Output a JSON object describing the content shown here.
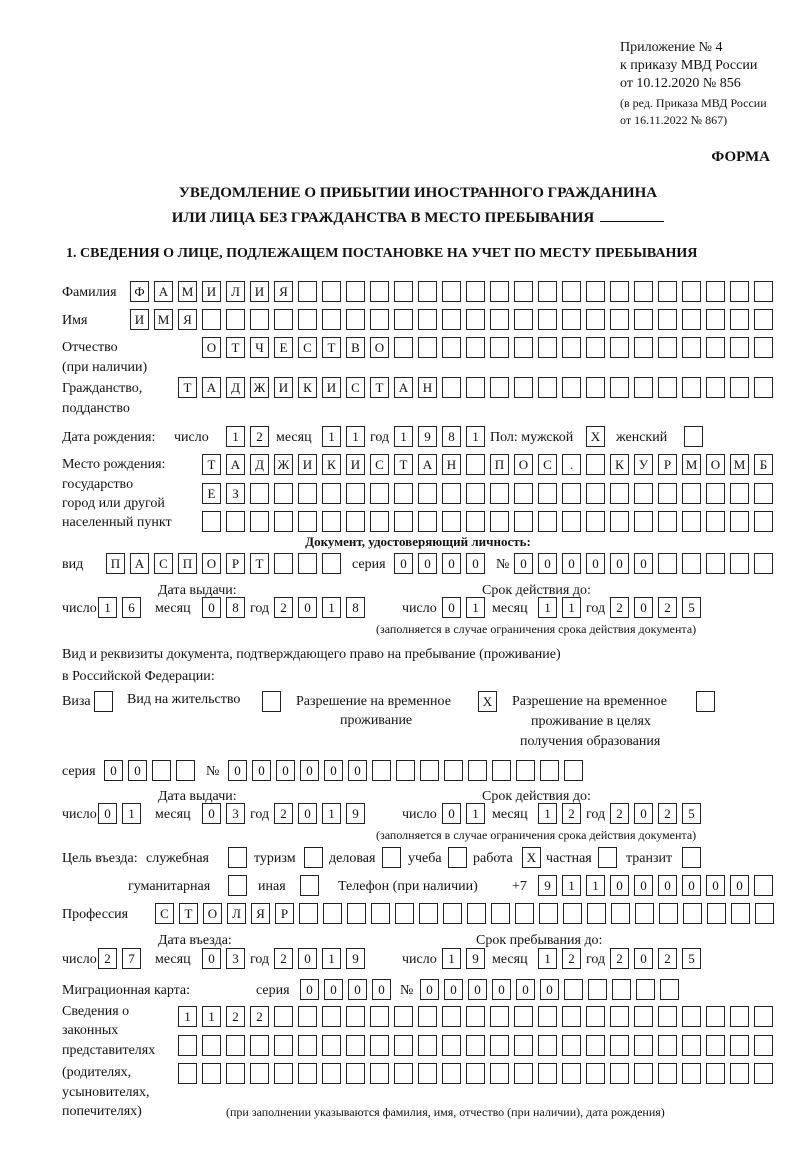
{
  "header": {
    "appendix": [
      "Приложение № 4",
      "к приказу МВД России",
      "от 10.12.2020 № 856"
    ],
    "edition": [
      "(в ред. Приказа МВД России",
      "от 16.11.2022 № 867)"
    ],
    "forma": "ФОРМА",
    "title": [
      "УВЕДОМЛЕНИЕ О ПРИБЫТИИ ИНОСТРАННОГО ГРАЖДАНИНА",
      "ИЛИ ЛИЦА БЕЗ ГРАЖДАНСТВА В МЕСТО ПРЕБЫВАНИЯ"
    ],
    "section1": "1. СВЕДЕНИЯ О ЛИЦЕ, ПОДЛЕЖАЩЕМ ПОСТАНОВКЕ НА УЧЕТ ПО МЕСТУ ПРЕБЫВАНИЯ"
  },
  "person": {
    "surname": {
      "label": "Фамилия",
      "value": "ФАМИЛИЯ"
    },
    "name": {
      "label": "Имя",
      "value": "ИМЯ"
    },
    "patronymic": {
      "label": [
        "Отчество",
        "(при наличии)"
      ],
      "value": "ОТЧЕСТВО"
    },
    "citizenship": {
      "label": [
        "Гражданство,",
        "подданство"
      ],
      "value": "ТАДЖИКИСТАН"
    },
    "birth_date": {
      "label": "Дата рождения:",
      "day_label": "число",
      "day": "12",
      "month_label": "месяц",
      "month": "11",
      "year_label": "год",
      "year": "1981"
    },
    "sex": {
      "label": "Пол: мужской",
      "male": "X",
      "female_label": "женский",
      "female": ""
    },
    "birth_place": {
      "label": [
        "Место рождения:",
        "государство",
        "город или другой",
        "населенный пункт"
      ],
      "lines": [
        "ТАДЖИКИСТАН ПОС. КУРМОМБ",
        "ЕЗ",
        ""
      ]
    }
  },
  "id_document": {
    "heading": "Документ, удостоверяющий личность:",
    "type_label": "вид",
    "type": "ПАСПОРТ",
    "series_label": "серия",
    "series": "0000",
    "number_label": "№",
    "number": "000000",
    "issue_label": "Дата выдачи:",
    "valid_label": "Срок действия до:",
    "day_label": "число",
    "month_label": "месяц",
    "year_label": "год",
    "issue": {
      "day": "16",
      "month": "08",
      "year": "2018"
    },
    "valid": {
      "day": "01",
      "month": "11",
      "year": "2025"
    },
    "note": "(заполняется в случае ограничения срока действия документа)"
  },
  "residence_document": {
    "heading": [
      "Вид и реквизиты документа, подтверждающего право на пребывание (проживание)",
      "в Российской Федерации:"
    ],
    "visa_label": "Виза",
    "visa": "",
    "residence_permit_label": "Вид на жительство",
    "residence_permit": "",
    "temp_permit_label": [
      "Разрешение на временное",
      "проживание"
    ],
    "temp_permit": "X",
    "temp_permit_edu_label": [
      "Разрешение на временное",
      "проживание в целях",
      "получения образования"
    ],
    "temp_permit_edu": "",
    "series_label": "серия",
    "series": "00",
    "number_label": "№",
    "number": "000000",
    "issue_label": "Дата выдачи:",
    "valid_label": "Срок действия до:",
    "issue": {
      "day": "01",
      "month": "03",
      "year": "2019"
    },
    "valid": {
      "day": "01",
      "month": "12",
      "year": "2025"
    },
    "note": "(заполняется в случае ограничения срока действия документа)"
  },
  "purpose": {
    "label": "Цель въезда:",
    "options": [
      {
        "label": "служебная",
        "value": ""
      },
      {
        "label": "туризм",
        "value": ""
      },
      {
        "label": "деловая",
        "value": ""
      },
      {
        "label": "учеба",
        "value": ""
      },
      {
        "label": "работа",
        "value": "X"
      },
      {
        "label": "частная",
        "value": ""
      },
      {
        "label": "транзит",
        "value": ""
      },
      {
        "label": "гуманитарная",
        "value": ""
      },
      {
        "label": "иная",
        "value": ""
      }
    ]
  },
  "phone": {
    "label": "Телефон (при наличии)",
    "prefix": "+7",
    "value": "911000000"
  },
  "profession": {
    "label": "Профессия",
    "value": "СТОЛЯР"
  },
  "entry": {
    "entry_label": "Дата въезда:",
    "stay_label": "Срок пребывания до:",
    "entry_date": {
      "day": "27",
      "month": "03",
      "year": "2019"
    },
    "stay_until": {
      "day": "19",
      "month": "12",
      "year": "2025"
    }
  },
  "migration_card": {
    "label": "Миграционная карта:",
    "series_label": "серия",
    "series": "0000",
    "number_label": "№",
    "number": "000000"
  },
  "representatives": {
    "label": [
      "Сведения о",
      "законных",
      "представителях",
      "(родителях,",
      "усыновителях,",
      "попечителях)"
    ],
    "lines": [
      "1122",
      "",
      ""
    ],
    "note": "(при заполнении указываются фамилия, имя, отчество (при наличии), дата рождения)"
  }
}
